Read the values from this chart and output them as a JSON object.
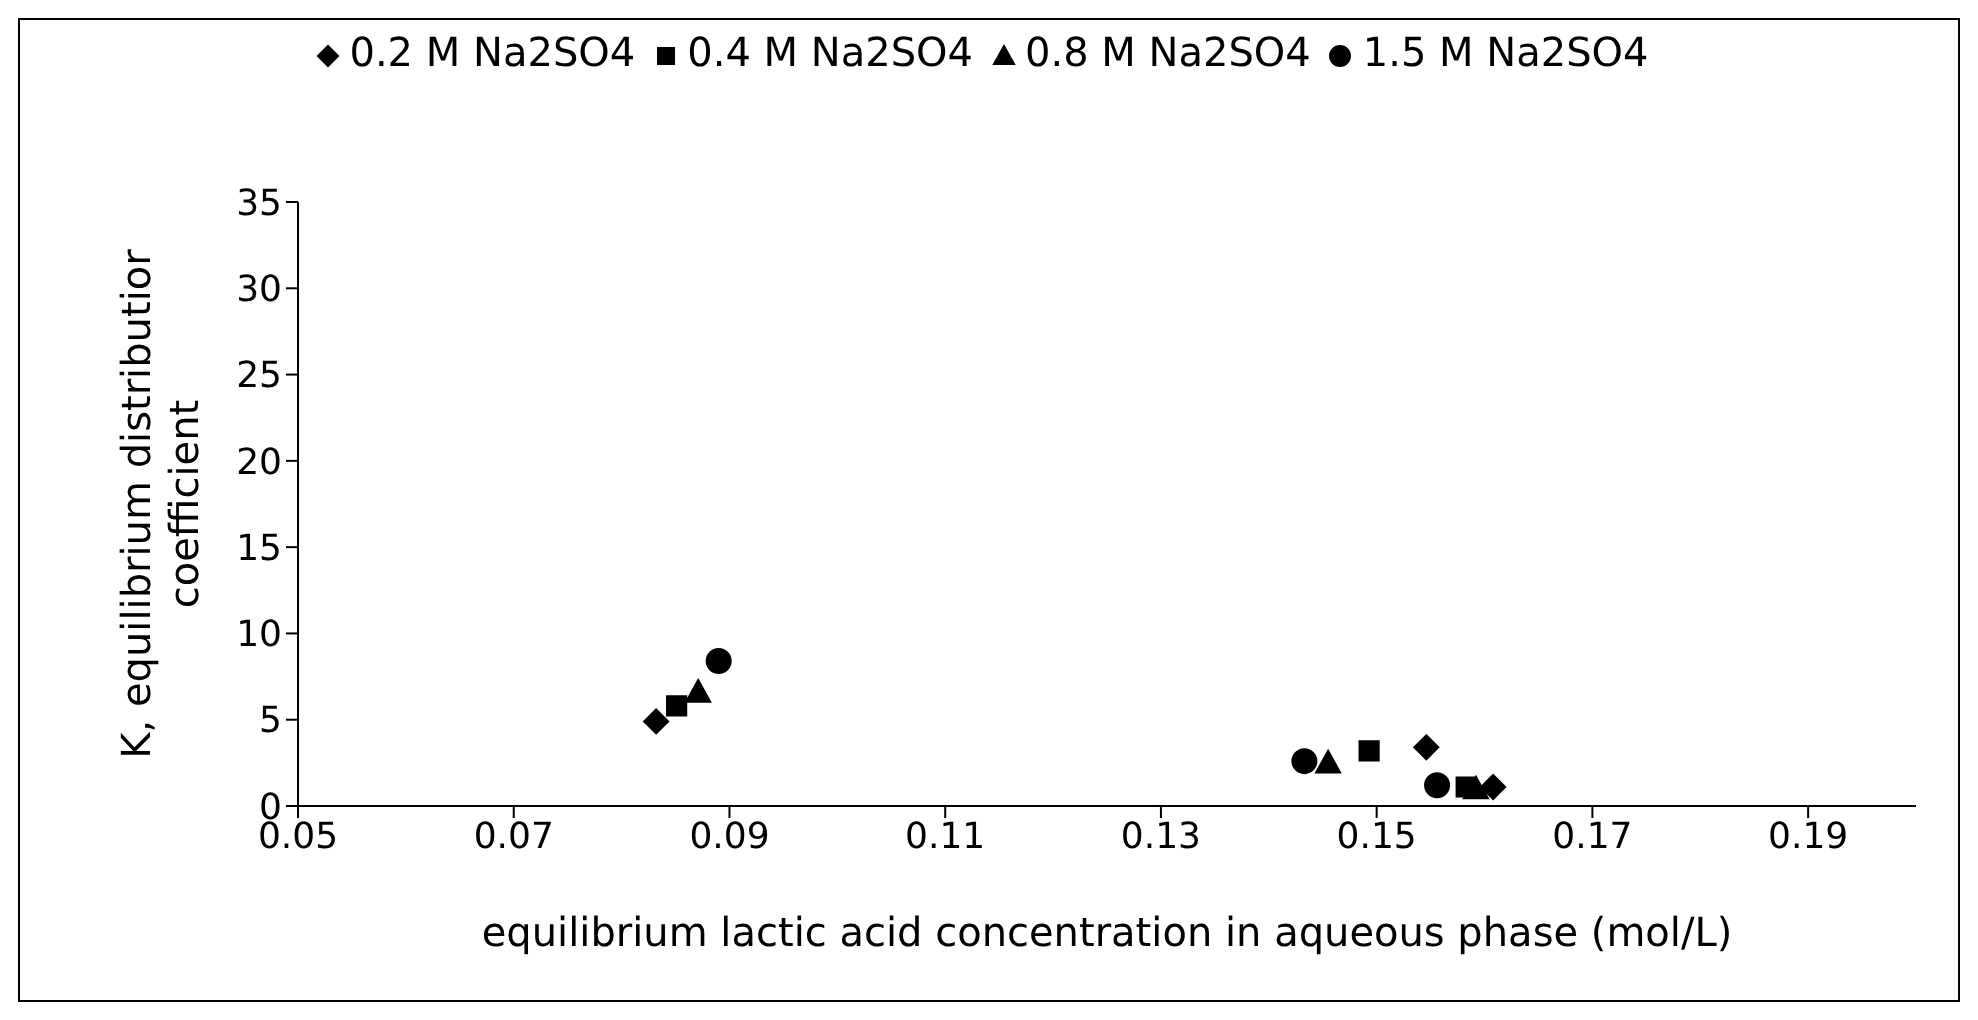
{
  "chart_data": {
    "type": "scatter",
    "xlabel": "equilibrium lactic acid concentration in aqueous phase (mol/L)",
    "ylabel": "K, equilibrium distributior coefficient",
    "xlim": [
      0.05,
      0.2
    ],
    "xticks": [
      0.05,
      0.07,
      0.09,
      0.11,
      0.13,
      0.15,
      0.17,
      0.19
    ],
    "ylim": [
      0,
      35
    ],
    "yticks": [
      0,
      5,
      10,
      15,
      20,
      25,
      30,
      35
    ],
    "grid": false,
    "legend": "top",
    "series": [
      {
        "name": "0.2 M Na2SO4",
        "color": "#000000",
        "marker": "diamond",
        "x": [
          0.0832,
          0.1546,
          0.1608
        ],
        "values": [
          4.9,
          3.4,
          1.1
        ]
      },
      {
        "name": "0.4 M Na2SO4",
        "color": "#000000",
        "marker": "square",
        "x": [
          0.0851,
          0.1493,
          0.1583
        ],
        "values": [
          5.8,
          3.2,
          1.1
        ]
      },
      {
        "name": "0.8 M Na2SO4",
        "color": "#000000",
        "marker": "triangle",
        "x": [
          0.0871,
          0.1455,
          0.1592
        ],
        "values": [
          6.6,
          2.5,
          1.0
        ]
      },
      {
        "name": "1.5 M Na2SO4",
        "color": "#000000",
        "marker": "circle",
        "x": [
          0.089,
          0.1433,
          0.1556
        ],
        "values": [
          8.4,
          2.6,
          1.2
        ]
      }
    ]
  }
}
